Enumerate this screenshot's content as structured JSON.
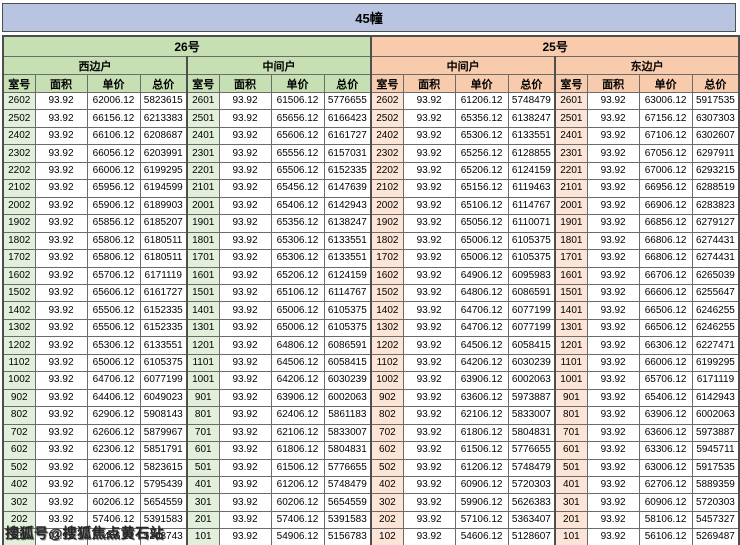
{
  "title": "45幢",
  "watermark": {
    "text": "搜狐号@搜狐焦点黄石站"
  },
  "colors": {
    "title_bg": "#b9c5e0",
    "green_header": "#c6e0b4",
    "green_room_cell": "#e2efda",
    "orange_header": "#f8cbad",
    "orange_room_cell": "#fce4d6",
    "border": "#4e4e4e"
  },
  "buildings": [
    {
      "label": "26号",
      "theme": "green"
    },
    {
      "label": "25号",
      "theme": "orange"
    }
  ],
  "groups": [
    {
      "building": "26号",
      "unit": "西边户",
      "theme": "green"
    },
    {
      "building": "26号",
      "unit": "中间户",
      "theme": "green"
    },
    {
      "building": "25号",
      "unit": "中间户",
      "theme": "orange"
    },
    {
      "building": "25号",
      "unit": "东边户",
      "theme": "orange"
    }
  ],
  "column_keys": [
    "room",
    "area",
    "price",
    "total"
  ],
  "columns": {
    "room": "室号",
    "area": "面积",
    "price": "单价",
    "total": "总价"
  },
  "rows": [
    [
      [
        "2602",
        "93.92",
        "62006.12",
        "5823615"
      ],
      [
        "2601",
        "93.92",
        "61506.12",
        "5776655"
      ],
      [
        "2602",
        "93.92",
        "61206.12",
        "5748479"
      ],
      [
        "2601",
        "93.92",
        "63006.12",
        "5917535"
      ]
    ],
    [
      [
        "2502",
        "93.92",
        "66156.12",
        "6213383"
      ],
      [
        "2501",
        "93.92",
        "65656.12",
        "6166423"
      ],
      [
        "2502",
        "93.92",
        "65356.12",
        "6138247"
      ],
      [
        "2501",
        "93.92",
        "67156.12",
        "6307303"
      ]
    ],
    [
      [
        "2402",
        "93.92",
        "66106.12",
        "6208687"
      ],
      [
        "2401",
        "93.92",
        "65606.12",
        "6161727"
      ],
      [
        "2402",
        "93.92",
        "65306.12",
        "6133551"
      ],
      [
        "2401",
        "93.92",
        "67106.12",
        "6302607"
      ]
    ],
    [
      [
        "2302",
        "93.92",
        "66056.12",
        "6203991"
      ],
      [
        "2301",
        "93.92",
        "65556.12",
        "6157031"
      ],
      [
        "2302",
        "93.92",
        "65256.12",
        "6128855"
      ],
      [
        "2301",
        "93.92",
        "67056.12",
        "6297911"
      ]
    ],
    [
      [
        "2202",
        "93.92",
        "66006.12",
        "6199295"
      ],
      [
        "2201",
        "93.92",
        "65506.12",
        "6152335"
      ],
      [
        "2202",
        "93.92",
        "65206.12",
        "6124159"
      ],
      [
        "2201",
        "93.92",
        "67006.12",
        "6293215"
      ]
    ],
    [
      [
        "2102",
        "93.92",
        "65956.12",
        "6194599"
      ],
      [
        "2101",
        "93.92",
        "65456.12",
        "6147639"
      ],
      [
        "2102",
        "93.92",
        "65156.12",
        "6119463"
      ],
      [
        "2101",
        "93.92",
        "66956.12",
        "6288519"
      ]
    ],
    [
      [
        "2002",
        "93.92",
        "65906.12",
        "6189903"
      ],
      [
        "2001",
        "93.92",
        "65406.12",
        "6142943"
      ],
      [
        "2002",
        "93.92",
        "65106.12",
        "6114767"
      ],
      [
        "2001",
        "93.92",
        "66906.12",
        "6283823"
      ]
    ],
    [
      [
        "1902",
        "93.92",
        "65856.12",
        "6185207"
      ],
      [
        "1901",
        "93.92",
        "65356.12",
        "6138247"
      ],
      [
        "1902",
        "93.92",
        "65056.12",
        "6110071"
      ],
      [
        "1901",
        "93.92",
        "66856.12",
        "6279127"
      ]
    ],
    [
      [
        "1802",
        "93.92",
        "65806.12",
        "6180511"
      ],
      [
        "1801",
        "93.92",
        "65306.12",
        "6133551"
      ],
      [
        "1802",
        "93.92",
        "65006.12",
        "6105375"
      ],
      [
        "1801",
        "93.92",
        "66806.12",
        "6274431"
      ]
    ],
    [
      [
        "1702",
        "93.92",
        "65806.12",
        "6180511"
      ],
      [
        "1701",
        "93.92",
        "65306.12",
        "6133551"
      ],
      [
        "1702",
        "93.92",
        "65006.12",
        "6105375"
      ],
      [
        "1701",
        "93.92",
        "66806.12",
        "6274431"
      ]
    ],
    [
      [
        "1602",
        "93.92",
        "65706.12",
        "6171119"
      ],
      [
        "1601",
        "93.92",
        "65206.12",
        "6124159"
      ],
      [
        "1602",
        "93.92",
        "64906.12",
        "6095983"
      ],
      [
        "1601",
        "93.92",
        "66706.12",
        "6265039"
      ]
    ],
    [
      [
        "1502",
        "93.92",
        "65606.12",
        "6161727"
      ],
      [
        "1501",
        "93.92",
        "65106.12",
        "6114767"
      ],
      [
        "1502",
        "93.92",
        "64806.12",
        "6086591"
      ],
      [
        "1501",
        "93.92",
        "66606.12",
        "6255647"
      ]
    ],
    [
      [
        "1402",
        "93.92",
        "65506.12",
        "6152335"
      ],
      [
        "1401",
        "93.92",
        "65006.12",
        "6105375"
      ],
      [
        "1402",
        "93.92",
        "64706.12",
        "6077199"
      ],
      [
        "1401",
        "93.92",
        "66506.12",
        "6246255"
      ]
    ],
    [
      [
        "1302",
        "93.92",
        "65506.12",
        "6152335"
      ],
      [
        "1301",
        "93.92",
        "65006.12",
        "6105375"
      ],
      [
        "1302",
        "93.92",
        "64706.12",
        "6077199"
      ],
      [
        "1301",
        "93.92",
        "66506.12",
        "6246255"
      ]
    ],
    [
      [
        "1202",
        "93.92",
        "65306.12",
        "6133551"
      ],
      [
        "1201",
        "93.92",
        "64806.12",
        "6086591"
      ],
      [
        "1202",
        "93.92",
        "64506.12",
        "6058415"
      ],
      [
        "1201",
        "93.92",
        "66306.12",
        "6227471"
      ]
    ],
    [
      [
        "1102",
        "93.92",
        "65006.12",
        "6105375"
      ],
      [
        "1101",
        "93.92",
        "64506.12",
        "6058415"
      ],
      [
        "1102",
        "93.92",
        "64206.12",
        "6030239"
      ],
      [
        "1101",
        "93.92",
        "66006.12",
        "6199295"
      ]
    ],
    [
      [
        "1002",
        "93.92",
        "64706.12",
        "6077199"
      ],
      [
        "1001",
        "93.92",
        "64206.12",
        "6030239"
      ],
      [
        "1002",
        "93.92",
        "63906.12",
        "6002063"
      ],
      [
        "1001",
        "93.92",
        "65706.12",
        "6171119"
      ]
    ],
    [
      [
        "902",
        "93.92",
        "64406.12",
        "6049023"
      ],
      [
        "901",
        "93.92",
        "63906.12",
        "6002063"
      ],
      [
        "902",
        "93.92",
        "63606.12",
        "5973887"
      ],
      [
        "901",
        "93.92",
        "65406.12",
        "6142943"
      ]
    ],
    [
      [
        "802",
        "93.92",
        "62906.12",
        "5908143"
      ],
      [
        "801",
        "93.92",
        "62406.12",
        "5861183"
      ],
      [
        "802",
        "93.92",
        "62106.12",
        "5833007"
      ],
      [
        "801",
        "93.92",
        "63906.12",
        "6002063"
      ]
    ],
    [
      [
        "702",
        "93.92",
        "62606.12",
        "5879967"
      ],
      [
        "701",
        "93.92",
        "62106.12",
        "5833007"
      ],
      [
        "702",
        "93.92",
        "61806.12",
        "5804831"
      ],
      [
        "701",
        "93.92",
        "63606.12",
        "5973887"
      ]
    ],
    [
      [
        "602",
        "93.92",
        "62306.12",
        "5851791"
      ],
      [
        "601",
        "93.92",
        "61806.12",
        "5804831"
      ],
      [
        "602",
        "93.92",
        "61506.12",
        "5776655"
      ],
      [
        "601",
        "93.92",
        "63306.12",
        "5945711"
      ]
    ],
    [
      [
        "502",
        "93.92",
        "62006.12",
        "5823615"
      ],
      [
        "501",
        "93.92",
        "61506.12",
        "5776655"
      ],
      [
        "502",
        "93.92",
        "61206.12",
        "5748479"
      ],
      [
        "501",
        "93.92",
        "63006.12",
        "5917535"
      ]
    ],
    [
      [
        "402",
        "93.92",
        "61706.12",
        "5795439"
      ],
      [
        "401",
        "93.92",
        "61206.12",
        "5748479"
      ],
      [
        "402",
        "93.92",
        "60906.12",
        "5720303"
      ],
      [
        "401",
        "93.92",
        "62706.12",
        "5889359"
      ]
    ],
    [
      [
        "302",
        "93.92",
        "60206.12",
        "5654559"
      ],
      [
        "301",
        "93.92",
        "60206.12",
        "5654559"
      ],
      [
        "302",
        "93.92",
        "59906.12",
        "5626383"
      ],
      [
        "301",
        "93.92",
        "60906.12",
        "5720303"
      ]
    ],
    [
      [
        "202",
        "93.92",
        "57406.12",
        "5391583"
      ],
      [
        "201",
        "93.92",
        "57406.12",
        "5391583"
      ],
      [
        "202",
        "93.92",
        "57106.12",
        "5363407"
      ],
      [
        "201",
        "93.92",
        "58106.12",
        "5457327"
      ]
    ],
    [
      [
        "102",
        "93.92",
        "55406.12",
        "5203743"
      ],
      [
        "101",
        "93.92",
        "54906.12",
        "5156783"
      ],
      [
        "102",
        "93.92",
        "54606.12",
        "5128607"
      ],
      [
        "101",
        "93.92",
        "56106.12",
        "5269487"
      ]
    ]
  ]
}
